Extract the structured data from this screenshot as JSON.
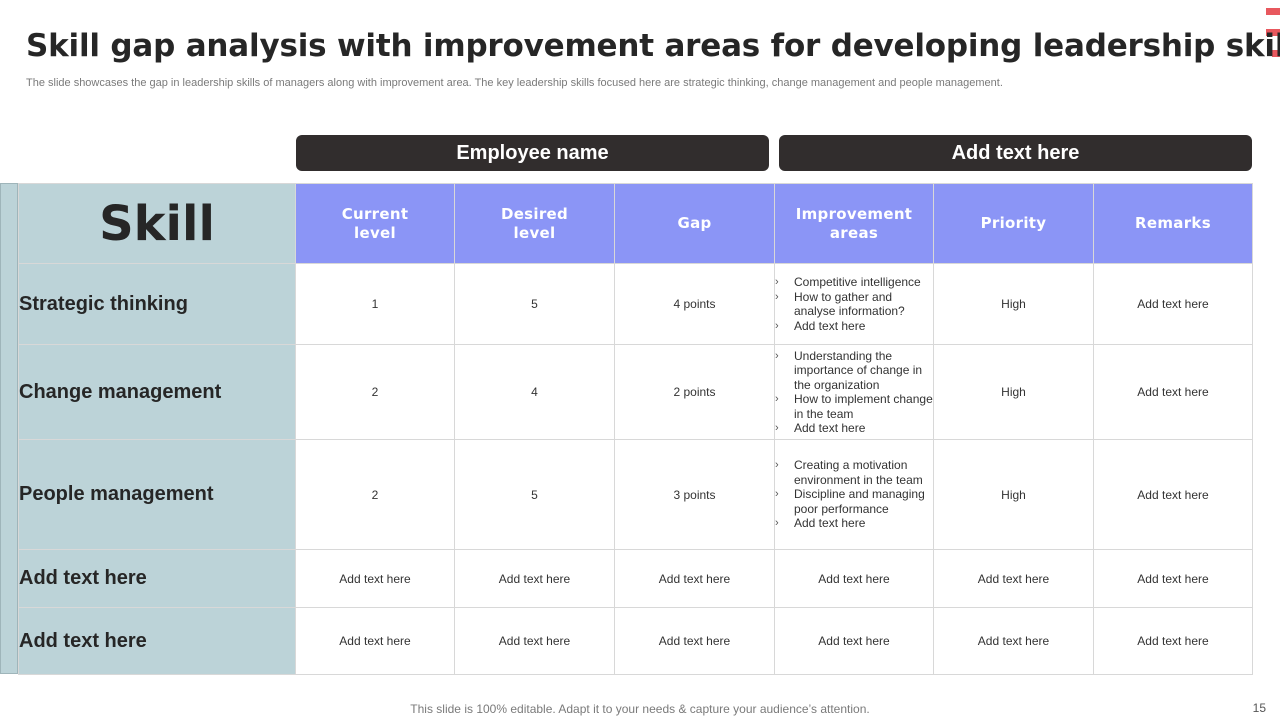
{
  "slide": {
    "title": "Skill gap analysis with improvement areas for developing leadership skills",
    "subtitle": "The slide showcases the gap in leadership skills of managers along with improvement area. The key leadership skills focused here are strategic thinking, change management and people management.",
    "footer": "This slide is 100% editable. Adapt it to your needs & capture your audience’s attention.",
    "page_number": "15",
    "accent_color": "#e8585e",
    "header_color": "#8b95f6",
    "skill_column_color": "#bcd3d8",
    "pill_color": "#312d2d"
  },
  "pills": {
    "left": "Employee name",
    "right": "Add text here"
  },
  "table": {
    "skill_header": "Skill",
    "columns": {
      "current_line1": "Current",
      "current_line2": "level",
      "desired_line1": "Desired",
      "desired_line2": "level",
      "gap": "Gap",
      "improvement_line1": "Improvement",
      "improvement_line2": "areas",
      "priority": "Priority",
      "remarks": "Remarks"
    },
    "rows": [
      {
        "skill": "Strategic thinking",
        "current": "1",
        "desired": "5",
        "gap": "4 points",
        "improvement": [
          "Competitive intelligence",
          "How to gather and analyse information?",
          "Add text here"
        ],
        "priority": "High",
        "remarks": "Add text here"
      },
      {
        "skill": "Change management",
        "current": "2",
        "desired": "4",
        "gap": "2 points",
        "improvement": [
          "Understanding the importance of change in the organization",
          "How to implement change in the team",
          "Add text here"
        ],
        "priority": "High",
        "remarks": "Add text here"
      },
      {
        "skill": "People management",
        "current": "2",
        "desired": "5",
        "gap": "3 points",
        "improvement": [
          "Creating a motivation environment in the team",
          "Discipline and managing poor performance",
          "Add text here"
        ],
        "priority": "High",
        "remarks": "Add text here"
      },
      {
        "skill": "Add text here",
        "current": "Add text here",
        "desired": "Add text here",
        "gap": "Add text here",
        "improvement_text": "Add text here",
        "priority": "Add text here",
        "remarks": "Add text here"
      },
      {
        "skill": "Add text here",
        "current": "Add text here",
        "desired": "Add text here",
        "gap": "Add text here",
        "improvement_text": "Add text here",
        "priority": "Add text here",
        "remarks": "Add text here"
      }
    ],
    "bullet_glyph": "›"
  }
}
